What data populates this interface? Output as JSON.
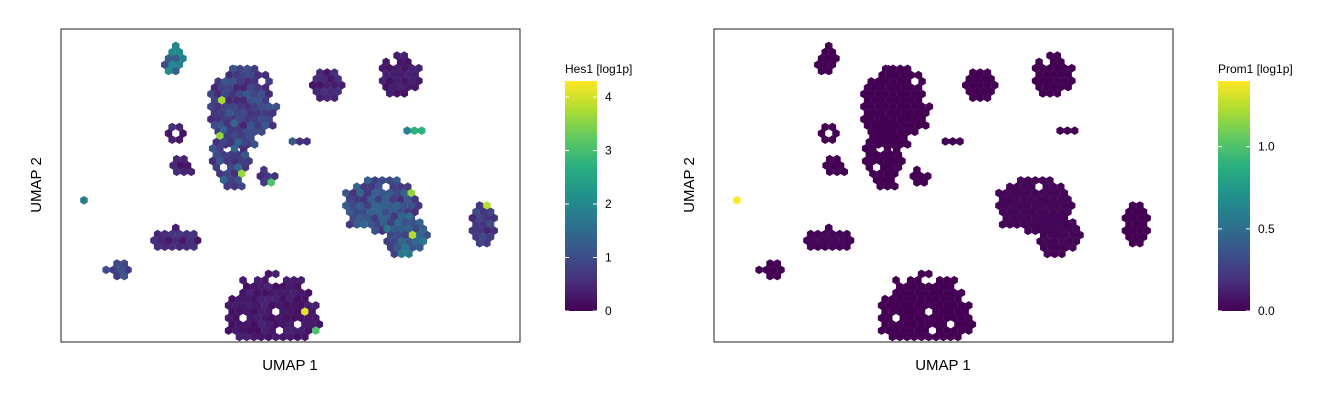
{
  "chart_data": [
    {
      "type": "hexbin",
      "xlabel": "UMAP 1",
      "ylabel": "UMAP 2",
      "gene_label": "Hes1 [log1p]",
      "colorbar": {
        "colormap": "viridis",
        "range": [
          0,
          4.3
        ],
        "ticks": [
          0,
          1,
          2,
          3,
          4
        ],
        "tick_labels": [
          "0",
          "1",
          "2",
          "3",
          "4"
        ]
      },
      "grid": false,
      "clusters": [
        {
          "u": 0.25,
          "v": 0.11,
          "rx": 0.025,
          "ry": 0.05,
          "level": 1.6
        },
        {
          "u": 0.38,
          "v": 0.15,
          "rx": 0.01,
          "ry": 0.02,
          "level": 2.0
        },
        {
          "u": 0.39,
          "v": 0.29,
          "rx": 0.075,
          "ry": 0.14,
          "level": 0.8
        },
        {
          "u": 0.37,
          "v": 0.47,
          "rx": 0.04,
          "ry": 0.12,
          "level": 1.0
        },
        {
          "u": 0.25,
          "v": 0.39,
          "rx": 0.02,
          "ry": 0.04,
          "level": 0.4
        },
        {
          "u": 0.26,
          "v": 0.51,
          "rx": 0.03,
          "ry": 0.03,
          "level": 0.4
        },
        {
          "u": 0.45,
          "v": 0.55,
          "rx": 0.02,
          "ry": 0.03,
          "level": 0.8
        },
        {
          "u": 0.58,
          "v": 0.21,
          "rx": 0.035,
          "ry": 0.06,
          "level": 0.4
        },
        {
          "u": 0.74,
          "v": 0.17,
          "rx": 0.05,
          "ry": 0.07,
          "level": 0.3
        },
        {
          "u": 0.77,
          "v": 0.38,
          "rx": 0.025,
          "ry": 0.02,
          "level": 2.2
        },
        {
          "u": 0.7,
          "v": 0.66,
          "rx": 0.085,
          "ry": 0.1,
          "level": 1.0
        },
        {
          "u": 0.75,
          "v": 0.77,
          "rx": 0.05,
          "ry": 0.08,
          "level": 1.2
        },
        {
          "u": 0.25,
          "v": 0.79,
          "rx": 0.055,
          "ry": 0.04,
          "level": 0.5
        },
        {
          "u": 0.13,
          "v": 0.9,
          "rx": 0.03,
          "ry": 0.03,
          "level": 0.8
        },
        {
          "u": 0.92,
          "v": 0.73,
          "rx": 0.03,
          "ry": 0.08,
          "level": 0.7
        },
        {
          "u": 0.46,
          "v": 1.08,
          "rx": 0.105,
          "ry": 0.14,
          "level": 0.3
        },
        {
          "u": 0.05,
          "v": 0.64,
          "rx": 0.01,
          "ry": 0.01,
          "level": 1.5
        },
        {
          "u": 0.52,
          "v": 0.42,
          "rx": 0.02,
          "ry": 0.01,
          "level": 0.8
        }
      ]
    },
    {
      "type": "hexbin",
      "xlabel": "UMAP 1",
      "ylabel": "UMAP 2",
      "gene_label": "Prom1 [log1p]",
      "colorbar": {
        "colormap": "viridis",
        "range": [
          0,
          1.4
        ],
        "ticks": [
          0.0,
          0.5,
          1.0
        ],
        "tick_labels": [
          "0.0",
          "0.5",
          "1.0"
        ]
      },
      "grid": false,
      "clusters": [
        {
          "u": 0.25,
          "v": 0.11,
          "rx": 0.025,
          "ry": 0.05,
          "level": 0.0
        },
        {
          "u": 0.38,
          "v": 0.15,
          "rx": 0.01,
          "ry": 0.02,
          "level": 0.0
        },
        {
          "u": 0.39,
          "v": 0.29,
          "rx": 0.075,
          "ry": 0.14,
          "level": 0.0
        },
        {
          "u": 0.37,
          "v": 0.47,
          "rx": 0.04,
          "ry": 0.12,
          "level": 0.0
        },
        {
          "u": 0.25,
          "v": 0.39,
          "rx": 0.02,
          "ry": 0.04,
          "level": 0.0
        },
        {
          "u": 0.26,
          "v": 0.51,
          "rx": 0.03,
          "ry": 0.03,
          "level": 0.0
        },
        {
          "u": 0.45,
          "v": 0.55,
          "rx": 0.02,
          "ry": 0.03,
          "level": 0.0
        },
        {
          "u": 0.58,
          "v": 0.21,
          "rx": 0.035,
          "ry": 0.06,
          "level": 0.0
        },
        {
          "u": 0.74,
          "v": 0.17,
          "rx": 0.05,
          "ry": 0.07,
          "level": 0.0
        },
        {
          "u": 0.77,
          "v": 0.38,
          "rx": 0.025,
          "ry": 0.02,
          "level": 0.0
        },
        {
          "u": 0.7,
          "v": 0.66,
          "rx": 0.085,
          "ry": 0.1,
          "level": 0.02
        },
        {
          "u": 0.75,
          "v": 0.77,
          "rx": 0.05,
          "ry": 0.08,
          "level": 0.02
        },
        {
          "u": 0.25,
          "v": 0.79,
          "rx": 0.055,
          "ry": 0.04,
          "level": 0.02
        },
        {
          "u": 0.13,
          "v": 0.9,
          "rx": 0.03,
          "ry": 0.03,
          "level": 0.0
        },
        {
          "u": 0.92,
          "v": 0.73,
          "rx": 0.03,
          "ry": 0.08,
          "level": 0.0
        },
        {
          "u": 0.46,
          "v": 1.08,
          "rx": 0.105,
          "ry": 0.14,
          "level": 0.0
        },
        {
          "u": 0.05,
          "v": 0.64,
          "rx": 0.01,
          "ry": 0.01,
          "level": 1.4
        },
        {
          "u": 0.52,
          "v": 0.42,
          "rx": 0.02,
          "ry": 0.01,
          "level": 0.0
        }
      ]
    }
  ]
}
